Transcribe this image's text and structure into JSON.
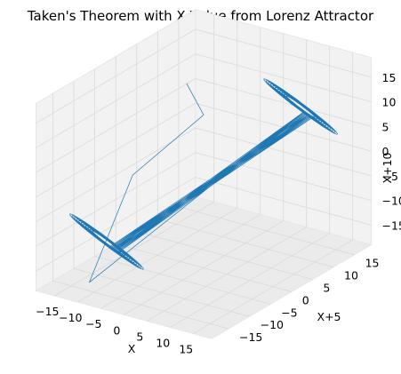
{
  "chart_data": {
    "type": "line",
    "projection": "3d",
    "title": "Taken's Theorem with X Value from Lorenz Attractor",
    "xlabel": "X",
    "ylabel": "X+5",
    "zlabel": "X+10",
    "x_ticks": [
      "−15",
      "−10",
      "−5",
      "0",
      "5",
      "10",
      "15"
    ],
    "y_ticks": [
      "−15",
      "−10",
      "−5",
      "0",
      "5",
      "10",
      "15"
    ],
    "z_ticks": [
      "−15",
      "−10",
      "−5",
      "0",
      "5",
      "10",
      "15"
    ],
    "xlim": [
      -19,
      19
    ],
    "ylim": [
      -19,
      19
    ],
    "zlim": [
      -19,
      19
    ],
    "grid": true,
    "series": [
      {
        "color": "#1f77b4",
        "description_points": {
          "initial_transient": [
            [
              -5.5,
              2.0,
              16.0
            ],
            [
              0.0,
              0.0,
              12.0
            ],
            [
              -9.0,
              -7.0,
              1.0
            ],
            [
              -12.0,
              -14.0,
              -18.0
            ]
          ],
          "lobe_a_center": [
            -11.0,
            -11.0,
            -11.0
          ],
          "lobe_b_center": [
            11.0,
            11.0,
            11.0
          ]
        }
      }
    ]
  },
  "colors": {
    "line": "#1f77b4",
    "pane": "#f2f2f2",
    "grid": "#d9d9d9"
  }
}
